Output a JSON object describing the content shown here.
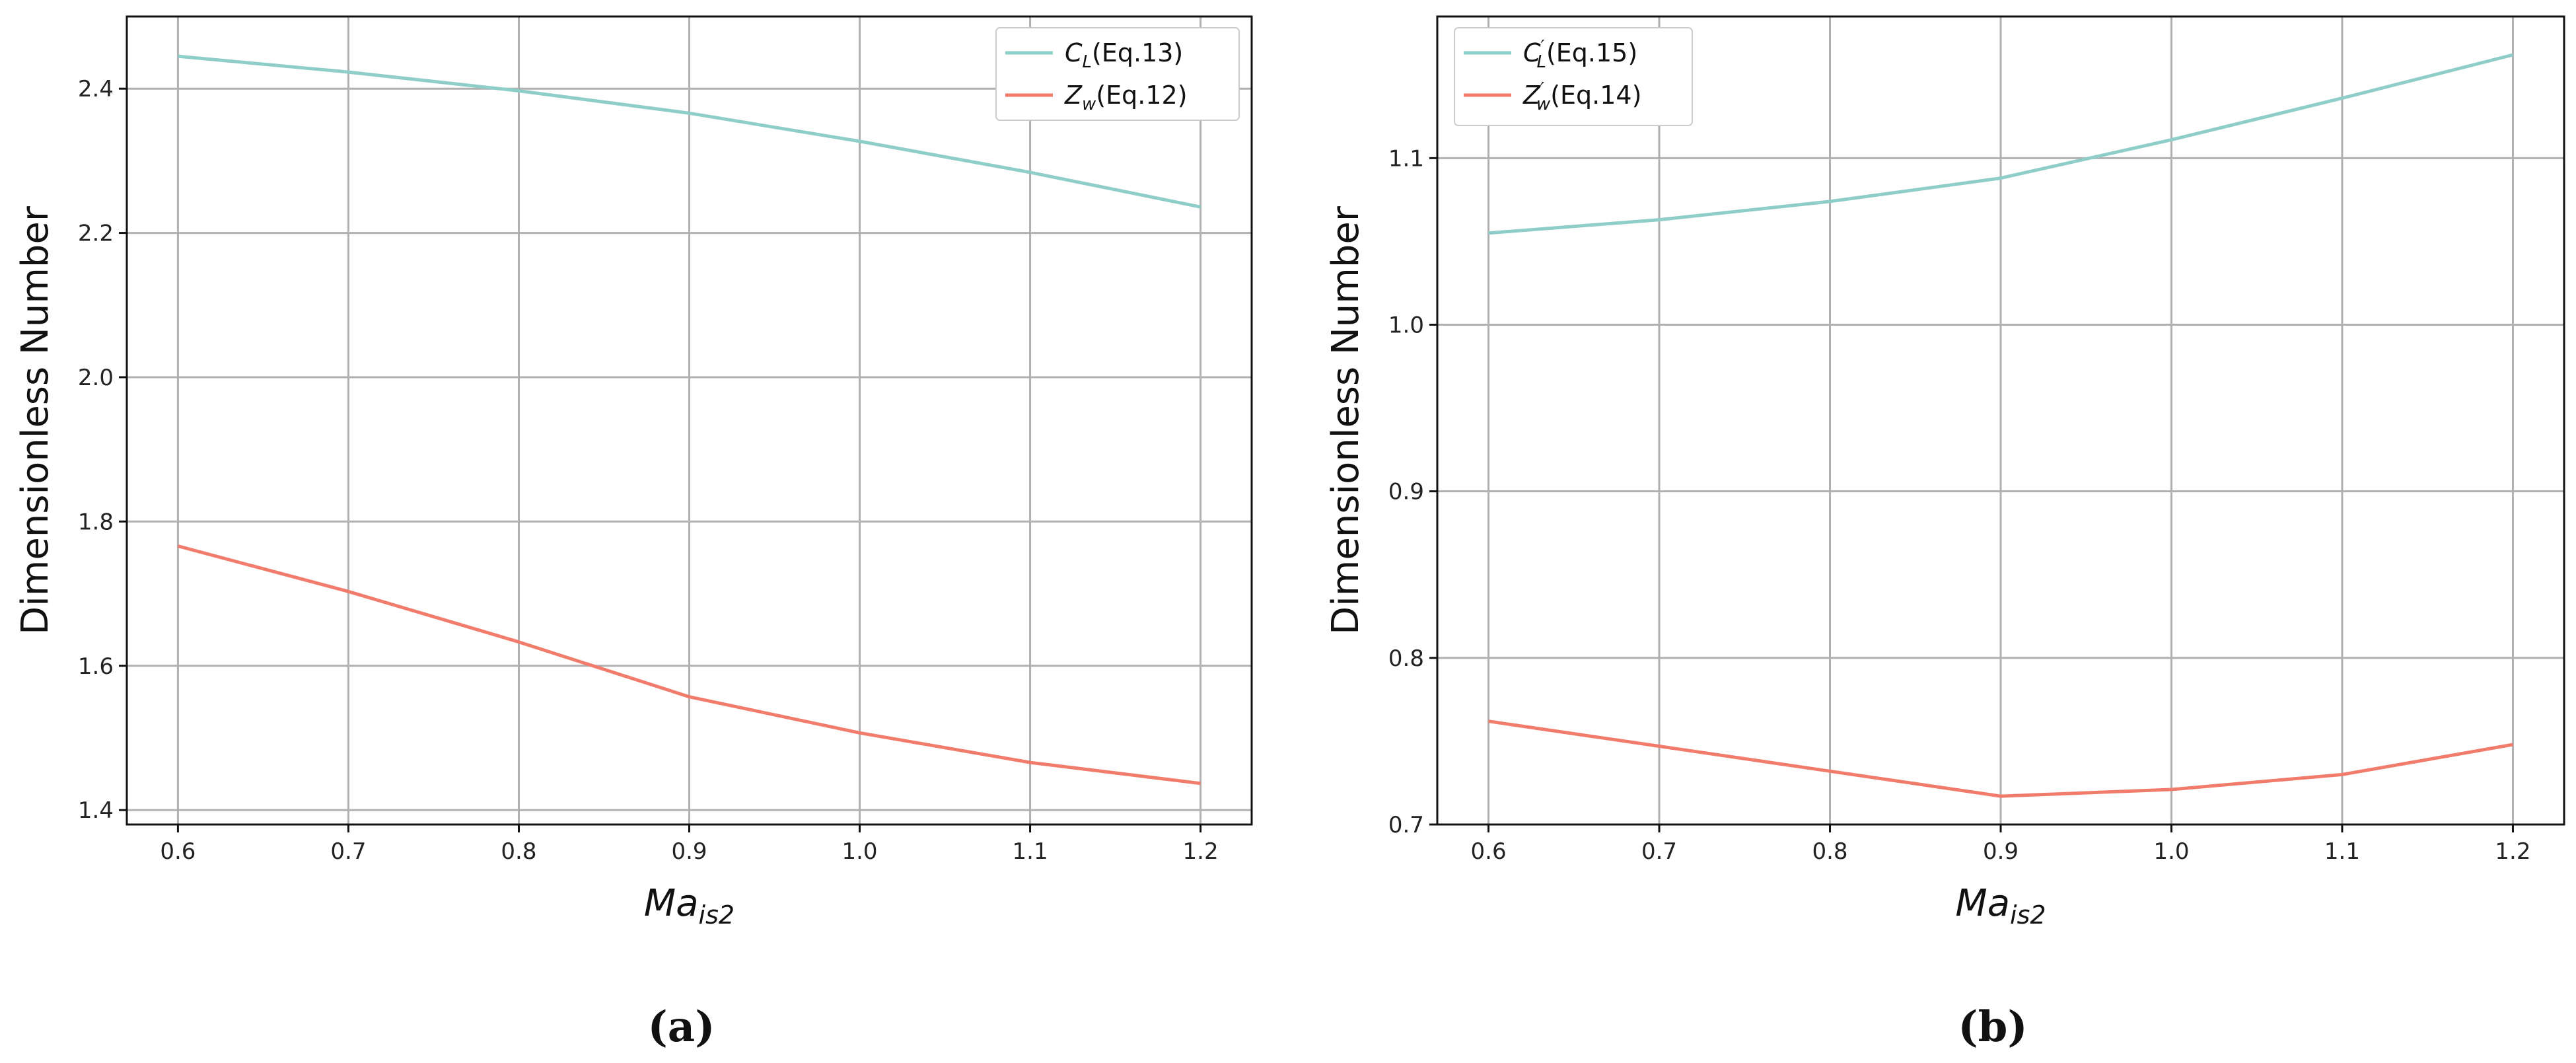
{
  "colors": {
    "teal": "#8ecdc8",
    "salmon": "#f17c6b",
    "grid": "#b0b0b0"
  },
  "chart_data": [
    {
      "type": "line",
      "panel_label": "(a)",
      "x": [
        0.6,
        0.7,
        0.8,
        0.9,
        1.0,
        1.1,
        1.2
      ],
      "xlim": [
        0.57,
        1.23
      ],
      "ylim": [
        1.38,
        2.5
      ],
      "xticks": [
        "0.6",
        "0.7",
        "0.8",
        "0.9",
        "1.0",
        "1.1",
        "1.2"
      ],
      "yticks": [
        "1.4",
        "1.6",
        "1.8",
        "2.0",
        "2.2",
        "2.4"
      ],
      "xlabel_main": "Ma",
      "xlabel_sub": "is2",
      "ylabel": "Dimensionless Number",
      "series": [
        {
          "name_main": "C",
          "name_sub": "L",
          "name_prime": "",
          "name_suffix": "(Eq.13)",
          "color": "#8ecdc8",
          "values": [
            2.445,
            2.423,
            2.397,
            2.366,
            2.327,
            2.284,
            2.236
          ]
        },
        {
          "name_main": "Z",
          "name_sub": "w",
          "name_prime": "",
          "name_suffix": "(Eq.12)",
          "color": "#f17c6b",
          "values": [
            1.766,
            1.703,
            1.633,
            1.557,
            1.507,
            1.466,
            1.437
          ]
        }
      ]
    },
    {
      "type": "line",
      "panel_label": "(b)",
      "x": [
        0.6,
        0.7,
        0.8,
        0.9,
        1.0,
        1.1,
        1.2
      ],
      "xlim": [
        0.57,
        1.23
      ],
      "ylim": [
        0.7,
        1.185
      ],
      "xticks": [
        "0.6",
        "0.7",
        "0.8",
        "0.9",
        "1.0",
        "1.1",
        "1.2"
      ],
      "yticks": [
        "0.7",
        "0.8",
        "0.9",
        "1.0",
        "1.1"
      ],
      "xlabel_main": "Ma",
      "xlabel_sub": "is2",
      "ylabel": "Dimensionless Number",
      "series": [
        {
          "name_main": "C",
          "name_sub": "L",
          "name_prime": "′",
          "name_suffix": "(Eq.15)",
          "color": "#8ecdc8",
          "values": [
            1.055,
            1.063,
            1.074,
            1.088,
            1.111,
            1.136,
            1.162
          ]
        },
        {
          "name_main": "Z",
          "name_sub": "w",
          "name_prime": "′",
          "name_suffix": "(Eq.14)",
          "color": "#f17c6b",
          "values": [
            0.762,
            0.747,
            0.732,
            0.717,
            0.721,
            0.73,
            0.748
          ]
        }
      ]
    }
  ]
}
